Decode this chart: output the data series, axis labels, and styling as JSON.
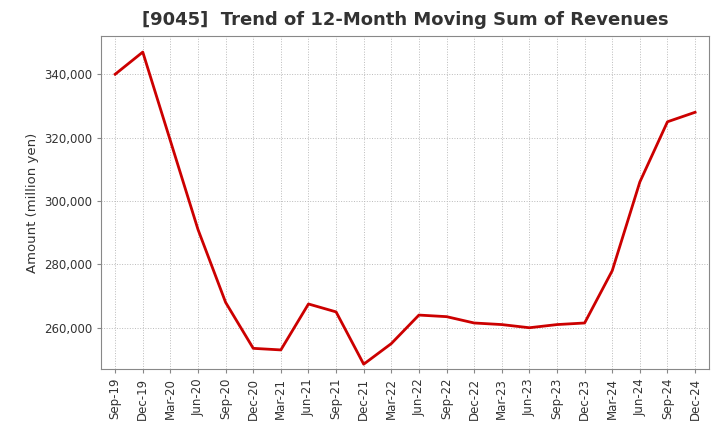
{
  "title": "[9045]  Trend of 12-Month Moving Sum of Revenues",
  "ylabel": "Amount (million yen)",
  "line_color": "#cc0000",
  "background_color": "#ffffff",
  "grid_color": "#bbbbbb",
  "x_labels": [
    "Sep-19",
    "Dec-19",
    "Mar-20",
    "Jun-20",
    "Sep-20",
    "Dec-20",
    "Mar-21",
    "Jun-21",
    "Sep-21",
    "Dec-21",
    "Mar-22",
    "Jun-22",
    "Sep-22",
    "Dec-22",
    "Mar-23",
    "Jun-23",
    "Sep-23",
    "Dec-23",
    "Mar-24",
    "Jun-24",
    "Sep-24",
    "Dec-24"
  ],
  "y_values": [
    340000,
    347000,
    319000,
    291000,
    268000,
    253500,
    253000,
    267500,
    265000,
    248500,
    255000,
    264000,
    263500,
    261500,
    261000,
    260000,
    261000,
    261500,
    278000,
    306000,
    325000,
    328000
  ],
  "ylim": [
    247000,
    352000
  ],
  "yticks": [
    260000,
    280000,
    300000,
    320000,
    340000
  ],
  "title_fontsize": 13,
  "tick_fontsize": 8.5,
  "label_fontsize": 9.5,
  "title_color": "#333333",
  "spine_color": "#888888",
  "line_width": 2.0
}
